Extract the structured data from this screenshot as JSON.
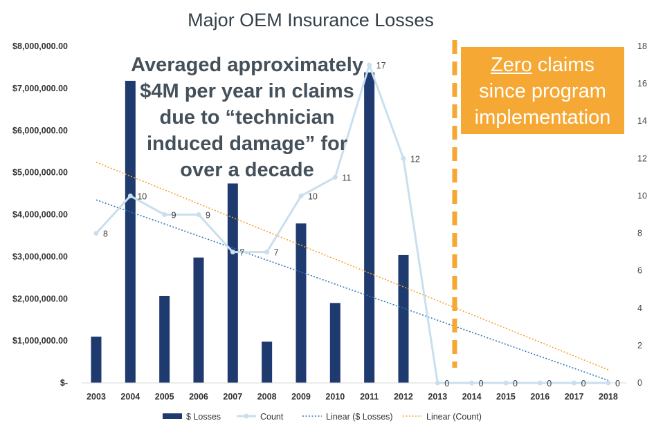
{
  "chart_data": {
    "type": "bar",
    "title": "Major OEM Insurance Losses",
    "categories": [
      "2003",
      "2004",
      "2005",
      "2006",
      "2007",
      "2008",
      "2009",
      "2010",
      "2011",
      "2012",
      "2013",
      "2014",
      "2015",
      "2016",
      "2017",
      "2018"
    ],
    "series": [
      {
        "name": "$ Losses",
        "type": "bar",
        "axis": "left",
        "color": "#1f3a6e",
        "values": [
          1100000,
          7180000,
          2070000,
          2980000,
          4740000,
          980000,
          3790000,
          1900000,
          7380000,
          3040000,
          0,
          0,
          0,
          0,
          0,
          0
        ]
      },
      {
        "name": "Count",
        "type": "line",
        "axis": "right",
        "color": "#c9dfee",
        "values": [
          8,
          10,
          9,
          9,
          7,
          7,
          10,
          11,
          17,
          12,
          0,
          0,
          0,
          0,
          0,
          0
        ],
        "labels": [
          "8",
          "10",
          "9",
          "9",
          "7",
          "7",
          "10",
          "11",
          "17",
          "12",
          "0",
          "0",
          "0",
          "0",
          "0",
          "0"
        ]
      },
      {
        "name": "Linear ($ Losses)",
        "type": "trendline",
        "axis": "left",
        "color": "#2e75b6",
        "start": 4350000,
        "end": 60000
      },
      {
        "name": "Linear (Count)",
        "type": "trendline",
        "axis": "right",
        "color": "#f0a32b",
        "start": 11.8,
        "end": 0.7
      }
    ],
    "yaxis_left": {
      "min": 0,
      "max": 8000000,
      "ticks": [
        "$-",
        "$1,000,000.00",
        "$2,000,000.00",
        "$3,000,000.00",
        "$4,000,000.00",
        "$5,000,000.00",
        "$6,000,000.00",
        "$7,000,000.00",
        "$8,000,000.00"
      ]
    },
    "yaxis_right": {
      "min": 0,
      "max": 18,
      "ticks": [
        "0",
        "2",
        "4",
        "6",
        "8",
        "10",
        "12",
        "14",
        "16",
        "18"
      ]
    },
    "legend": [
      "$ Losses",
      "Count",
      "Linear ($ Losses)",
      "Linear (Count)"
    ],
    "legend_position": "bottom",
    "grid": false,
    "divider_between": [
      "2013",
      "2014"
    ],
    "annotation_lines": [
      "Averaged approximately",
      "$4M per year in claims",
      "due to “technician",
      "induced damage” for",
      "over a decade"
    ],
    "callout": {
      "underlined": "Zero",
      "line1_rest": " claims",
      "line2": "since program",
      "line3": "implementation"
    }
  }
}
